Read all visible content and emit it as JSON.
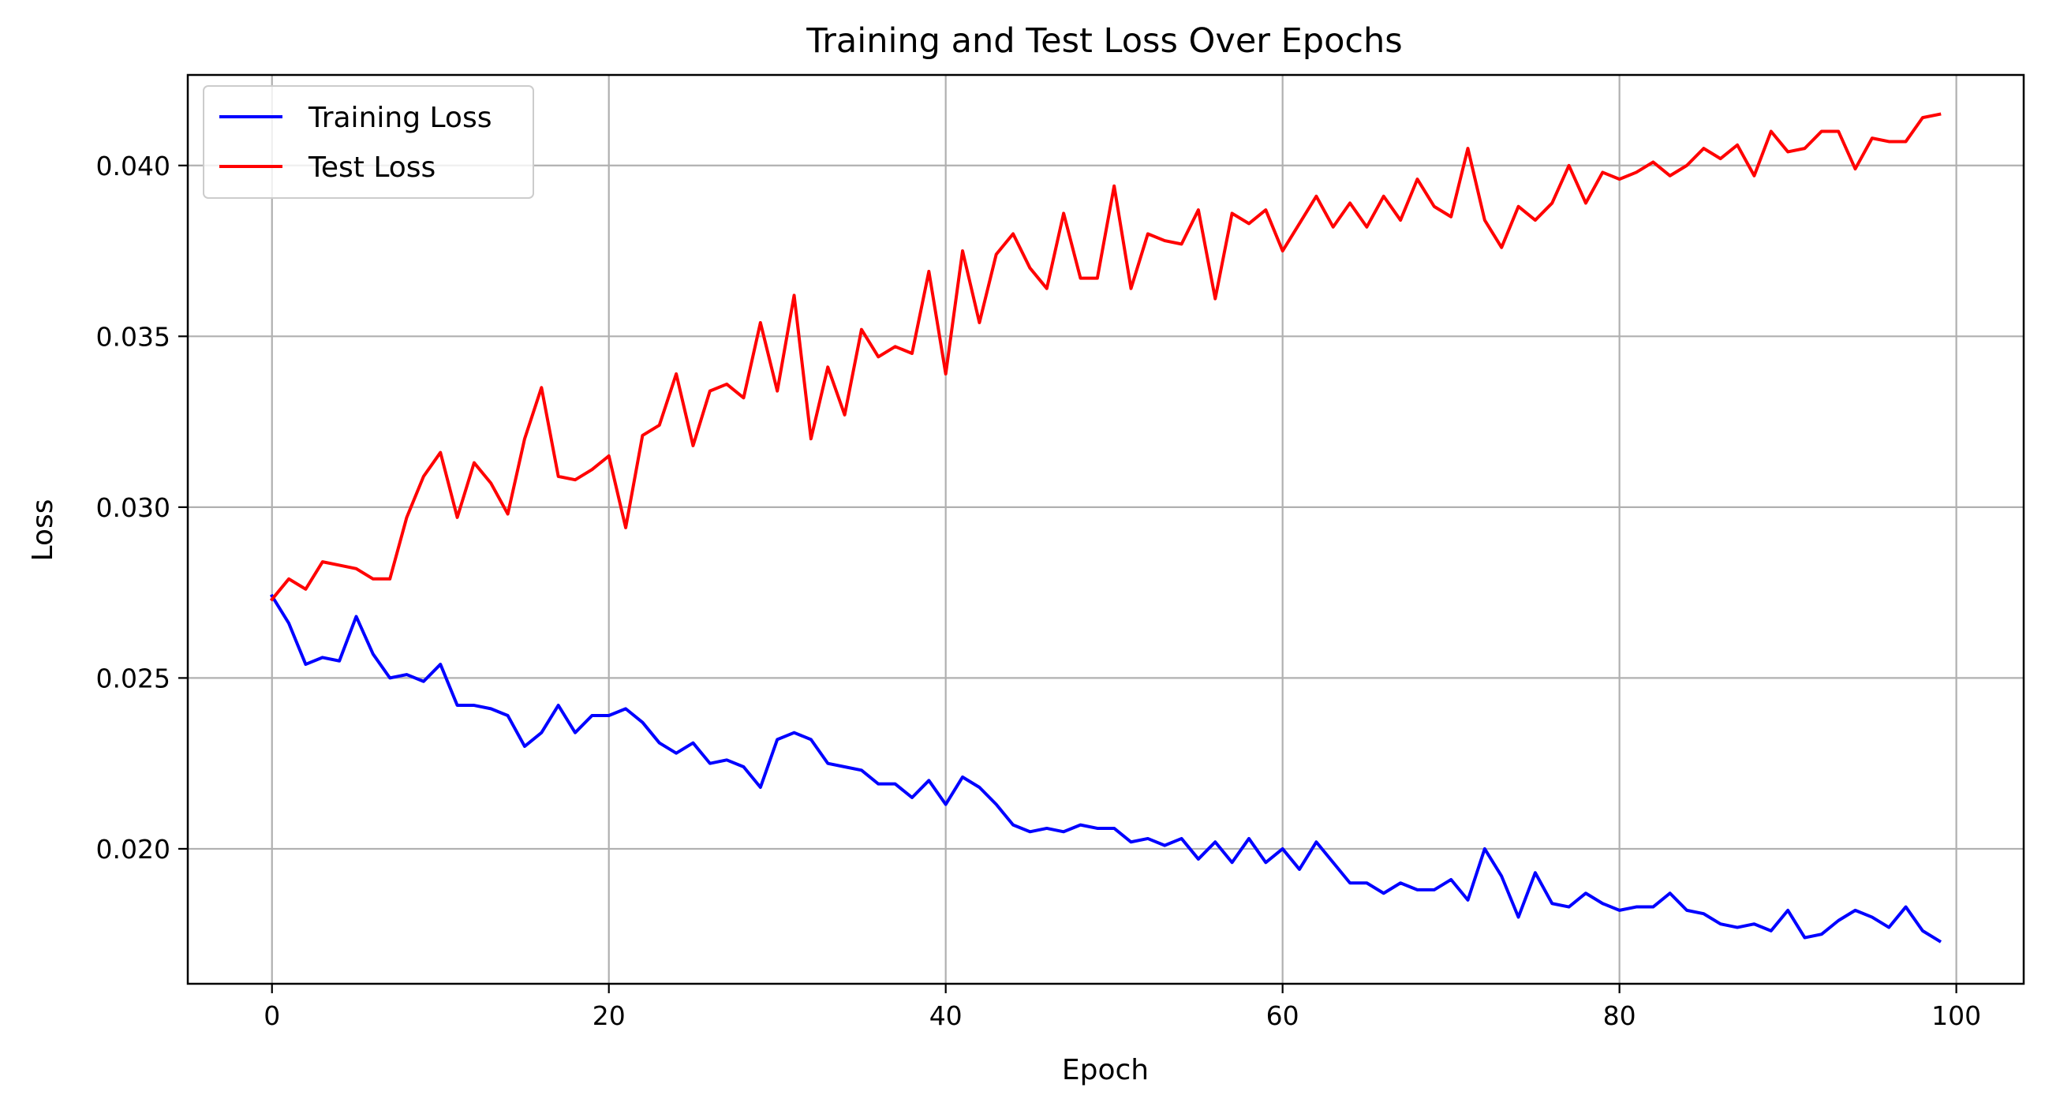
{
  "chart_data": {
    "type": "line",
    "title": "Training and Test Loss Over Epochs",
    "xlabel": "Epoch",
    "ylabel": "Loss",
    "xlim": [
      -5,
      104
    ],
    "ylim": [
      0.01605,
      0.04265
    ],
    "xticks": [
      0,
      20,
      40,
      60,
      80,
      100
    ],
    "yticks": [
      0.02,
      0.025,
      0.03,
      0.035,
      0.04
    ],
    "ytick_labels": [
      "0.020",
      "0.025",
      "0.030",
      "0.035",
      "0.040"
    ],
    "grid": true,
    "legend": "top-left",
    "x": [
      0,
      1,
      2,
      3,
      4,
      5,
      6,
      7,
      8,
      9,
      10,
      11,
      12,
      13,
      14,
      15,
      16,
      17,
      18,
      19,
      20,
      21,
      22,
      23,
      24,
      25,
      26,
      27,
      28,
      29,
      30,
      31,
      32,
      33,
      34,
      35,
      36,
      37,
      38,
      39,
      40,
      41,
      42,
      43,
      44,
      45,
      46,
      47,
      48,
      49,
      50,
      51,
      52,
      53,
      54,
      55,
      56,
      57,
      58,
      59,
      60,
      61,
      62,
      63,
      64,
      65,
      66,
      67,
      68,
      69,
      70,
      71,
      72,
      73,
      74,
      75,
      76,
      77,
      78,
      79,
      80,
      81,
      82,
      83,
      84,
      85,
      86,
      87,
      88,
      89,
      90,
      91,
      92,
      93,
      94,
      95,
      96,
      97,
      98,
      99
    ],
    "series": [
      {
        "name": "Training Loss",
        "color": "#0000ff",
        "values": [
          0.0274,
          0.0266,
          0.0254,
          0.0256,
          0.0255,
          0.0268,
          0.0257,
          0.025,
          0.0251,
          0.0249,
          0.0254,
          0.0242,
          0.0242,
          0.0241,
          0.0239,
          0.023,
          0.0234,
          0.0242,
          0.0234,
          0.0239,
          0.0239,
          0.0241,
          0.0237,
          0.0231,
          0.0228,
          0.0231,
          0.0225,
          0.0226,
          0.0224,
          0.0218,
          0.0232,
          0.0234,
          0.0232,
          0.0225,
          0.0224,
          0.0223,
          0.0219,
          0.0219,
          0.0215,
          0.022,
          0.0213,
          0.0221,
          0.0218,
          0.0213,
          0.0207,
          0.0205,
          0.0206,
          0.0205,
          0.0207,
          0.0206,
          0.0206,
          0.0202,
          0.0203,
          0.0201,
          0.0203,
          0.0197,
          0.0202,
          0.0196,
          0.0203,
          0.0196,
          0.02,
          0.0194,
          0.0202,
          0.0196,
          0.019,
          0.019,
          0.0187,
          0.019,
          0.0188,
          0.0188,
          0.0191,
          0.0185,
          0.02,
          0.0192,
          0.018,
          0.0193,
          0.0184,
          0.0183,
          0.0187,
          0.0184,
          0.0182,
          0.0183,
          0.0183,
          0.0187,
          0.0182,
          0.0181,
          0.0178,
          0.0177,
          0.0178,
          0.0176,
          0.0182,
          0.0174,
          0.0175,
          0.0179,
          0.0182,
          0.018,
          0.0177,
          0.0183,
          0.0176,
          0.0173
        ]
      },
      {
        "name": "Test Loss",
        "color": "#ff0000",
        "values": [
          0.0273,
          0.0279,
          0.0276,
          0.0284,
          0.0283,
          0.0282,
          0.0279,
          0.0279,
          0.0297,
          0.0309,
          0.0316,
          0.0297,
          0.0313,
          0.0307,
          0.0298,
          0.032,
          0.0335,
          0.0309,
          0.0308,
          0.0311,
          0.0315,
          0.0294,
          0.0321,
          0.0324,
          0.0339,
          0.0318,
          0.0334,
          0.0336,
          0.0332,
          0.0354,
          0.0334,
          0.0362,
          0.032,
          0.0341,
          0.0327,
          0.0352,
          0.0344,
          0.0347,
          0.0345,
          0.0369,
          0.0339,
          0.0375,
          0.0354,
          0.0374,
          0.038,
          0.037,
          0.0364,
          0.0386,
          0.0367,
          0.0367,
          0.0394,
          0.0364,
          0.038,
          0.0378,
          0.0377,
          0.0387,
          0.0361,
          0.0386,
          0.0383,
          0.0387,
          0.0375,
          0.0383,
          0.0391,
          0.0382,
          0.0389,
          0.0382,
          0.0391,
          0.0384,
          0.0396,
          0.0388,
          0.0385,
          0.0405,
          0.0384,
          0.0376,
          0.0388,
          0.0384,
          0.0389,
          0.04,
          0.0389,
          0.0398,
          0.0396,
          0.0398,
          0.0401,
          0.0397,
          0.04,
          0.0405,
          0.0402,
          0.0406,
          0.0397,
          0.041,
          0.0404,
          0.0405,
          0.041,
          0.041,
          0.0399,
          0.0408,
          0.0407,
          0.0407,
          0.0414,
          0.0415
        ]
      }
    ]
  }
}
